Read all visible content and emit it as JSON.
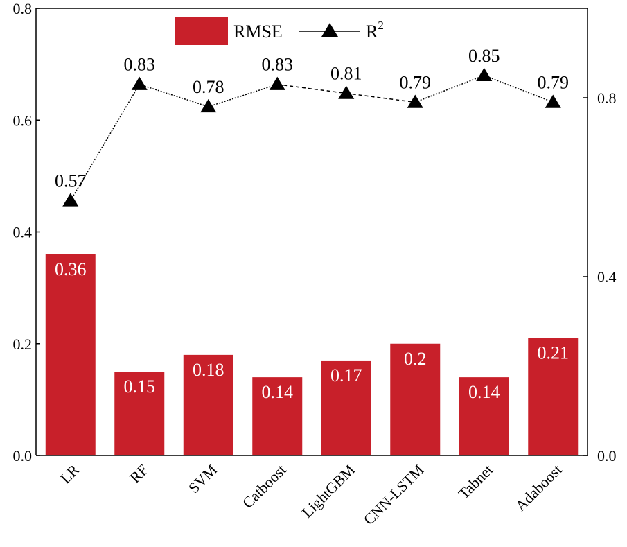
{
  "chart_data": {
    "type": "bar+line",
    "categories": [
      "LR",
      "RF",
      "SVM",
      "Catboost",
      "LightGBM",
      "CNN-LSTM",
      "Tabnet",
      "Adaboost"
    ],
    "series": [
      {
        "name": "RMSE",
        "kind": "bar",
        "axis": "left",
        "color": "#c8202a",
        "values": [
          0.36,
          0.15,
          0.18,
          0.14,
          0.17,
          0.2,
          0.14,
          0.21
        ],
        "labels": [
          "0.36",
          "0.15",
          "0.18",
          "0.14",
          "0.17",
          "0.2",
          "0.14",
          "0.21"
        ]
      },
      {
        "name": "R",
        "name_superscript": "2",
        "kind": "line",
        "axis": "right",
        "marker": "triangle",
        "color": "#000000",
        "values": [
          0.57,
          0.83,
          0.78,
          0.83,
          0.81,
          0.79,
          0.85,
          0.79
        ],
        "labels": [
          "0.57",
          "0.83",
          "0.78",
          "0.83",
          "0.81",
          "0.79",
          "0.85",
          "0.79"
        ]
      }
    ],
    "left_axis": {
      "ylim": [
        0,
        0.8
      ],
      "ticks": [
        "0.0",
        "0.2",
        "0.4",
        "0.6",
        "0.8"
      ],
      "tick_values": [
        0,
        0.2,
        0.4,
        0.6,
        0.8
      ]
    },
    "right_axis": {
      "ylim": [
        0,
        1.0
      ],
      "ticks": [
        "0.0",
        "0.4",
        "0.8"
      ],
      "tick_values": [
        0,
        0.4,
        0.8
      ]
    },
    "title": "",
    "xlabel": "",
    "ylabel": "",
    "legend": {
      "position": "top-center",
      "entries": [
        "RMSE",
        "R2"
      ]
    },
    "grid": false
  }
}
